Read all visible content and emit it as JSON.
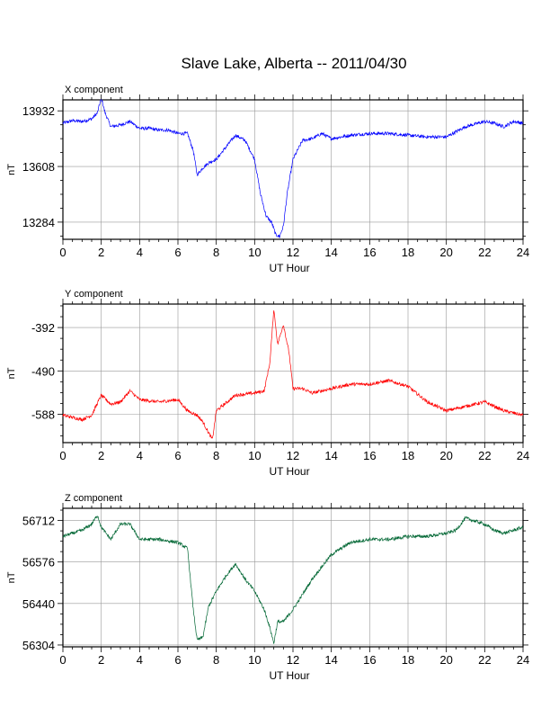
{
  "title": "Slave Lake, Alberta -- 2011/04/30",
  "colors": {
    "x": "#0000ff",
    "y": "#ff0000",
    "z": "#006633",
    "grid": "#999999"
  },
  "chart_data": [
    {
      "type": "line",
      "panel_label": "X component",
      "xlabel": "UT Hour",
      "ylabel": "nT",
      "xlim": [
        0,
        24
      ],
      "ylim": [
        13184,
        13996
      ],
      "xticks": [
        0,
        2,
        4,
        6,
        8,
        10,
        12,
        14,
        16,
        18,
        20,
        22,
        24
      ],
      "yticks": [
        13284,
        13608,
        13932
      ],
      "grid": true,
      "series": [
        {
          "color": "#0000ff",
          "x": [
            0,
            0.5,
            1.0,
            1.5,
            1.8,
            2.0,
            2.2,
            2.5,
            3.0,
            3.5,
            4.0,
            4.5,
            5.0,
            5.5,
            6.0,
            6.5,
            6.8,
            7.0,
            7.3,
            7.6,
            8.0,
            8.5,
            9.0,
            9.5,
            10.0,
            10.3,
            10.6,
            10.9,
            11.1,
            11.3,
            11.5,
            11.7,
            12.0,
            12.5,
            13.0,
            13.5,
            14.0,
            15.0,
            16.0,
            17.0,
            18.0,
            19.0,
            20.0,
            21.0,
            22.0,
            22.5,
            23.0,
            23.5,
            24.0
          ],
          "y": [
            13860,
            13875,
            13870,
            13885,
            13920,
            14010,
            13920,
            13840,
            13850,
            13870,
            13830,
            13830,
            13820,
            13820,
            13800,
            13800,
            13700,
            13560,
            13600,
            13630,
            13650,
            13720,
            13790,
            13760,
            13650,
            13450,
            13320,
            13280,
            13210,
            13200,
            13260,
            13450,
            13650,
            13760,
            13770,
            13800,
            13770,
            13790,
            13800,
            13800,
            13790,
            13780,
            13780,
            13840,
            13870,
            13860,
            13840,
            13870,
            13860
          ]
        }
      ]
    },
    {
      "type": "line",
      "panel_label": "Y component",
      "xlabel": "UT Hour",
      "ylabel": "nT",
      "xlim": [
        0,
        24
      ],
      "ylim": [
        -652,
        -339
      ],
      "xticks": [
        0,
        2,
        4,
        6,
        8,
        10,
        12,
        14,
        16,
        18,
        20,
        22,
        24
      ],
      "yticks": [
        -588,
        -490,
        -392
      ],
      "grid": true,
      "series": [
        {
          "color": "#ff0000",
          "x": [
            0,
            0.5,
            1.0,
            1.5,
            2.0,
            2.5,
            3.0,
            3.5,
            4.0,
            5.0,
            6.0,
            6.5,
            7.0,
            7.3,
            7.6,
            7.8,
            8.0,
            9.0,
            10.0,
            10.5,
            10.8,
            11.0,
            11.2,
            11.5,
            11.8,
            12.0,
            12.5,
            13.0,
            14.0,
            15.0,
            16.0,
            17.0,
            18.0,
            19.0,
            20.0,
            21.0,
            22.0,
            23.0,
            24.0
          ],
          "y": [
            -590,
            -595,
            -600,
            -590,
            -545,
            -565,
            -560,
            -535,
            -555,
            -560,
            -555,
            -580,
            -590,
            -605,
            -630,
            -645,
            -580,
            -545,
            -540,
            -535,
            -470,
            -350,
            -430,
            -385,
            -450,
            -530,
            -530,
            -540,
            -530,
            -520,
            -520,
            -512,
            -525,
            -560,
            -580,
            -570,
            -560,
            -580,
            -590
          ]
        }
      ]
    },
    {
      "type": "line",
      "panel_label": "Z component",
      "xlabel": "UT Hour",
      "ylabel": "nT",
      "xlim": [
        0,
        24
      ],
      "ylim": [
        56298,
        56752
      ],
      "xticks": [
        0,
        2,
        4,
        6,
        8,
        10,
        12,
        14,
        16,
        18,
        20,
        22,
        24
      ],
      "yticks": [
        56304,
        56440,
        56576,
        56712
      ],
      "grid": true,
      "series": [
        {
          "color": "#006633",
          "x": [
            0,
            0.5,
            1.0,
            1.5,
            1.8,
            2.0,
            2.5,
            3.0,
            3.5,
            4.0,
            5.0,
            6.0,
            6.5,
            6.8,
            7.0,
            7.3,
            7.6,
            8.0,
            8.5,
            9.0,
            9.5,
            10.0,
            10.5,
            10.8,
            11.0,
            11.2,
            11.5,
            12.0,
            12.5,
            13.0,
            14.0,
            15.0,
            16.0,
            17.0,
            18.0,
            19.0,
            20.0,
            20.5,
            21.0,
            21.5,
            22.0,
            22.5,
            23.0,
            24.0
          ],
          "y": [
            56660,
            56670,
            56680,
            56700,
            56730,
            56690,
            56650,
            56700,
            56700,
            56650,
            56650,
            56640,
            56620,
            56420,
            56320,
            56330,
            56430,
            56480,
            56530,
            56570,
            56520,
            56480,
            56420,
            56360,
            56310,
            56380,
            56380,
            56420,
            56470,
            56520,
            56600,
            56640,
            56650,
            56650,
            56660,
            56660,
            56670,
            56680,
            56720,
            56710,
            56700,
            56680,
            56670,
            56690
          ]
        }
      ]
    }
  ]
}
